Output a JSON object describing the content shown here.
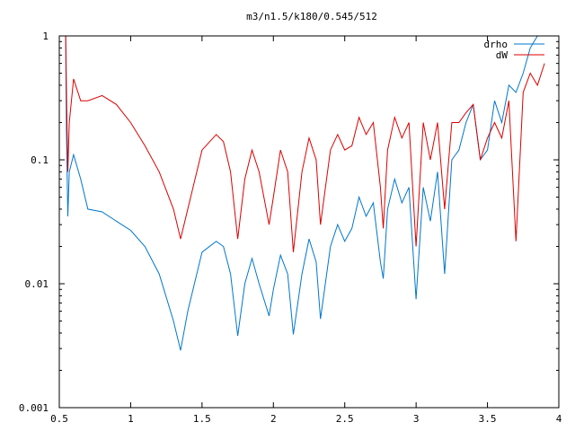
{
  "chart_data": {
    "type": "line",
    "title": "m3/n1.5/k180/0.545/512",
    "xlabel": "",
    "ylabel": "",
    "xlim": [
      0.5,
      4
    ],
    "ylim": [
      0.001,
      1
    ],
    "y_scale": "log",
    "grid": false,
    "legend_position": "top-right",
    "x_ticks": [
      0.5,
      1,
      1.5,
      2,
      2.5,
      3,
      3.5,
      4
    ],
    "x_tick_labels": [
      "0.5",
      "1",
      "1.5",
      "2",
      "2.5",
      "3",
      "3.5",
      "4"
    ],
    "y_ticks": [
      1,
      0.1,
      0.01,
      0.001
    ],
    "y_tick_labels": [
      "1",
      "0.1",
      "0.01",
      "0.001"
    ],
    "series": [
      {
        "name": "drho",
        "color": "#0077cc",
        "x": [
          0.545,
          0.55,
          0.56,
          0.57,
          0.6,
          0.65,
          0.7,
          0.8,
          0.9,
          1.0,
          1.1,
          1.2,
          1.3,
          1.35,
          1.4,
          1.5,
          1.6,
          1.65,
          1.7,
          1.75,
          1.8,
          1.85,
          1.9,
          1.97,
          2.0,
          2.05,
          2.1,
          2.14,
          2.2,
          2.25,
          2.3,
          2.33,
          2.4,
          2.45,
          2.5,
          2.55,
          2.6,
          2.65,
          2.7,
          2.75,
          2.77,
          2.8,
          2.85,
          2.9,
          2.95,
          3.0,
          3.05,
          3.1,
          3.15,
          3.2,
          3.25,
          3.3,
          3.35,
          3.4,
          3.45,
          3.5,
          3.55,
          3.6,
          3.65,
          3.7,
          3.75,
          3.8,
          3.85,
          3.9
        ],
        "y": [
          1.0,
          0.18,
          0.035,
          0.08,
          0.11,
          0.07,
          0.04,
          0.038,
          0.032,
          0.027,
          0.02,
          0.012,
          0.005,
          0.0029,
          0.006,
          0.018,
          0.022,
          0.02,
          0.012,
          0.0038,
          0.01,
          0.016,
          0.01,
          0.0055,
          0.009,
          0.017,
          0.012,
          0.0039,
          0.012,
          0.023,
          0.015,
          0.0052,
          0.02,
          0.03,
          0.022,
          0.028,
          0.05,
          0.035,
          0.045,
          0.015,
          0.011,
          0.04,
          0.07,
          0.045,
          0.06,
          0.0075,
          0.06,
          0.032,
          0.08,
          0.012,
          0.1,
          0.12,
          0.2,
          0.28,
          0.1,
          0.12,
          0.3,
          0.2,
          0.4,
          0.35,
          0.5,
          0.8,
          1.0,
          1.0
        ]
      },
      {
        "name": "dW",
        "color": "#dd0000",
        "x": [
          0.545,
          0.55,
          0.56,
          0.57,
          0.6,
          0.65,
          0.7,
          0.8,
          0.9,
          1.0,
          1.1,
          1.2,
          1.3,
          1.35,
          1.4,
          1.5,
          1.6,
          1.65,
          1.7,
          1.75,
          1.8,
          1.85,
          1.9,
          1.97,
          2.0,
          2.05,
          2.1,
          2.14,
          2.2,
          2.25,
          2.3,
          2.33,
          2.4,
          2.45,
          2.5,
          2.55,
          2.6,
          2.65,
          2.7,
          2.75,
          2.77,
          2.8,
          2.85,
          2.9,
          2.95,
          3.0,
          3.05,
          3.1,
          3.15,
          3.2,
          3.25,
          3.3,
          3.35,
          3.4,
          3.45,
          3.5,
          3.55,
          3.6,
          3.65,
          3.7,
          3.75,
          3.8,
          3.85,
          3.9
        ],
        "y": [
          1.0,
          0.4,
          0.08,
          0.2,
          0.45,
          0.3,
          0.3,
          0.33,
          0.28,
          0.2,
          0.13,
          0.08,
          0.04,
          0.023,
          0.04,
          0.12,
          0.16,
          0.14,
          0.08,
          0.023,
          0.07,
          0.12,
          0.08,
          0.03,
          0.05,
          0.12,
          0.08,
          0.018,
          0.08,
          0.15,
          0.1,
          0.03,
          0.12,
          0.16,
          0.12,
          0.13,
          0.22,
          0.16,
          0.2,
          0.06,
          0.028,
          0.12,
          0.22,
          0.15,
          0.2,
          0.02,
          0.2,
          0.1,
          0.2,
          0.04,
          0.2,
          0.2,
          0.24,
          0.28,
          0.1,
          0.15,
          0.2,
          0.15,
          0.3,
          0.022,
          0.35,
          0.5,
          0.4,
          0.6
        ]
      }
    ]
  }
}
